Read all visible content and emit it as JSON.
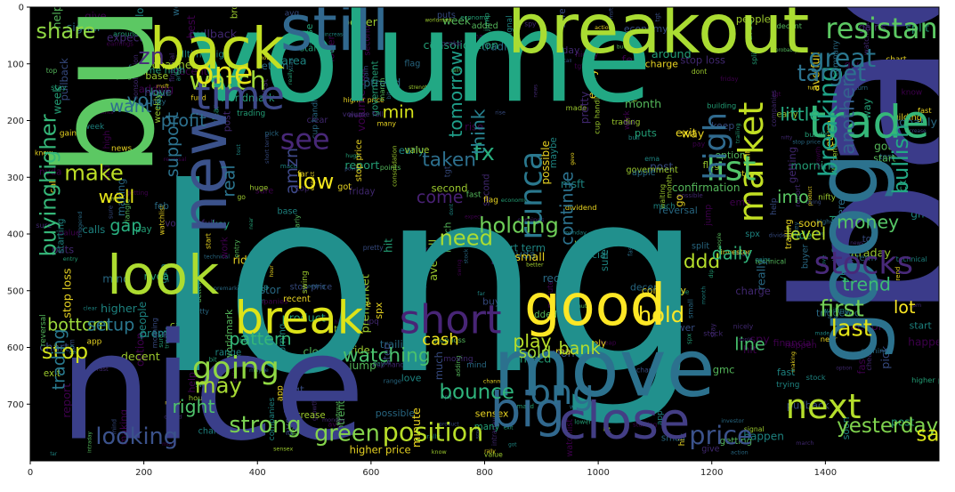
{
  "figure": {
    "background": "#ffffff",
    "plot_background": "#000000",
    "image_width_units": 1600,
    "image_height_units": 800
  },
  "axes": {
    "x_ticks": [
      0,
      200,
      400,
      600,
      800,
      1000,
      1200,
      1400
    ],
    "y_ticks": [
      0,
      100,
      200,
      300,
      400,
      500,
      600,
      700
    ],
    "xlim": [
      0,
      1600
    ],
    "ylim_inverted": [
      800,
      0
    ]
  },
  "palette": [
    "#440154",
    "#472c7a",
    "#3b518b",
    "#2c718e",
    "#21908d",
    "#27ad81",
    "#5cc863",
    "#aadc32",
    "#fde725"
  ],
  "wordcloud": {
    "major_words": [
      {
        "text": "long",
        "color": "#21908d"
      },
      {
        "text": "bac",
        "color": "#3b3b8a"
      },
      {
        "text": "volume",
        "color": "#22a884"
      },
      {
        "text": "nice",
        "color": "#3a3f8a"
      },
      {
        "text": "buy",
        "color": "#5cc863"
      },
      {
        "text": "breakout",
        "color": "#aadc32"
      },
      {
        "text": "still",
        "color": "#31688e"
      },
      {
        "text": "back",
        "color": "#c2df23"
      },
      {
        "text": "move",
        "color": "#2c718e"
      },
      {
        "text": "goog",
        "color": "#2c728e"
      },
      {
        "text": "close",
        "color": "#433e85"
      },
      {
        "text": "new",
        "color": "#3b528b"
      },
      {
        "text": "good",
        "color": "#fde725"
      },
      {
        "text": "look",
        "color": "#addc30"
      },
      {
        "text": "break",
        "color": "#dde318"
      },
      {
        "text": "short",
        "color": "#482576"
      },
      {
        "text": "big",
        "color": "#31688e"
      },
      {
        "text": "trade",
        "color": "#35b779"
      },
      {
        "text": "market",
        "color": "#c2df23"
      },
      {
        "text": "next",
        "color": "#b5de2b"
      },
      {
        "text": "stocks",
        "color": "#482979"
      },
      {
        "text": "resistance",
        "color": "#5cc863"
      },
      {
        "text": "watch",
        "color": "#a0da39"
      },
      {
        "text": "time",
        "color": "#3e4989"
      },
      {
        "text": "one",
        "color": "#e5e419"
      },
      {
        "text": "list",
        "color": "#52c569"
      },
      {
        "text": "going",
        "color": "#90d743"
      },
      {
        "text": "strong",
        "color": "#7ad151"
      },
      {
        "text": "position",
        "color": "#b8de29"
      },
      {
        "text": "green",
        "color": "#84d44b"
      },
      {
        "text": "price",
        "color": "#3b528b"
      },
      {
        "text": "high",
        "color": "#306a8e"
      },
      {
        "text": "see",
        "color": "#482878"
      },
      {
        "text": "great",
        "color": "#2a768e"
      },
      {
        "text": "looking",
        "color": "#3b528b"
      },
      {
        "text": "share",
        "color": "#8fd744"
      },
      {
        "text": "buyinghigher",
        "color": "#35b779"
      },
      {
        "text": "breaking",
        "color": "#1fa287"
      },
      {
        "text": "target",
        "color": "#2c728e"
      },
      {
        "text": "runca",
        "color": "#2a788e"
      },
      {
        "text": "make",
        "color": "#bddf26"
      },
      {
        "text": "ong",
        "color": "#2e6f8e"
      },
      {
        "text": "stop",
        "color": "#d0e11c"
      },
      {
        "text": "may",
        "color": "#a8db34"
      },
      {
        "text": "first",
        "color": "#73d056"
      },
      {
        "text": "last",
        "color": "#e2e418"
      },
      {
        "text": "hold",
        "color": "#fde725"
      },
      {
        "text": "low",
        "color": "#f1e51d"
      },
      {
        "text": "need",
        "color": "#aadc32"
      },
      {
        "text": "holding",
        "color": "#6ece58"
      },
      {
        "text": "bounce",
        "color": "#2fb47c"
      },
      {
        "text": "yesterday",
        "color": "#7fd34e"
      },
      {
        "text": "say",
        "color": "#d8e219"
      },
      {
        "text": "ddd",
        "color": "#b5de2b"
      },
      {
        "text": "bullish",
        "color": "#22a884"
      },
      {
        "text": "tomorrow",
        "color": "#1f9e89"
      },
      {
        "text": "taken",
        "color": "#2d708e"
      },
      {
        "text": "fx",
        "color": "#29af7f"
      },
      {
        "text": "watching",
        "color": "#4ac16d"
      },
      {
        "text": "play",
        "color": "#b8de29"
      },
      {
        "text": "right",
        "color": "#4ec36b"
      },
      {
        "text": "well",
        "color": "#e5e419"
      },
      {
        "text": "little",
        "color": "#25ac82"
      },
      {
        "text": "profit",
        "color": "#2d708e"
      },
      {
        "text": "trend",
        "color": "#3dbc74"
      },
      {
        "text": "support",
        "color": "#2c728e"
      },
      {
        "text": "think",
        "color": "#27808e"
      },
      {
        "text": "min",
        "color": "#d5e21a"
      },
      {
        "text": "real",
        "color": "#2b748e"
      },
      {
        "text": "amzn",
        "color": "#3e4989"
      },
      {
        "text": "bottom",
        "color": "#9bd93c"
      },
      {
        "text": "cash",
        "color": "#f1e51d"
      },
      {
        "text": "sold",
        "color": "#a0da39"
      },
      {
        "text": "bank",
        "color": "#b2dd2d"
      },
      {
        "text": "daily",
        "color": "#31b57b"
      },
      {
        "text": "imo",
        "color": "#5ac864"
      },
      {
        "text": "lot",
        "color": "#fbe723"
      },
      {
        "text": "continue",
        "color": "#2c728e"
      },
      {
        "text": "level",
        "color": "#b8de29"
      },
      {
        "text": "line",
        "color": "#48c16e"
      },
      {
        "text": "pattern",
        "color": "#35b779"
      },
      {
        "text": "gap",
        "color": "#29af7f"
      },
      {
        "text": "zn",
        "color": "#472d7b"
      },
      {
        "text": "another",
        "color": "#34618d"
      },
      {
        "text": "vol",
        "color": "#2c738e"
      },
      {
        "text": "want",
        "color": "#2e6e8e"
      },
      {
        "text": "money",
        "color": "#56c667"
      },
      {
        "text": "come",
        "color": "#482173"
      },
      {
        "text": "trading",
        "color": "#29798e"
      },
      {
        "text": "setup",
        "color": "#2a778e"
      }
    ],
    "small_words": [
      "stock",
      "trading",
      "morning",
      "soon",
      "pullback",
      "rally",
      "bull",
      "entry",
      "points",
      "higher",
      "month",
      "around",
      "test",
      "help",
      "dont",
      "post",
      "spy",
      "spx",
      "nvda",
      "gmc",
      "option",
      "call",
      "calls",
      "puts",
      "chart",
      "week",
      "weekly",
      "triangle",
      "stop loss",
      "cup handle",
      "earnings",
      "dividend",
      "economy",
      "sensex",
      "nifty",
      "intraday",
      "consolidation",
      "trailing",
      "made",
      "jpm",
      "start",
      "jump",
      "best",
      "range",
      "love",
      "sure",
      "app",
      "getting",
      "people",
      "macd",
      "investor",
      "cheap",
      "apple",
      "huge",
      "nicely",
      "small",
      "better",
      "split",
      "trying",
      "dip",
      "growth",
      "report",
      "signal",
      "clear",
      "minute",
      "expect",
      "news",
      "fund",
      "happen",
      "adding",
      "feb",
      "tgt",
      "week",
      "watchlist",
      "reversal",
      "early",
      "waiting",
      "company",
      "hpq",
      "worldmark",
      "making",
      "avg",
      "value",
      "ema",
      "pick",
      "possible",
      "pay",
      "maybe",
      "second",
      "uptrend",
      "keep",
      "government",
      "msft",
      "gevo",
      "tgt",
      "added",
      "got",
      "top",
      "monday",
      "pretty",
      "many",
      "know",
      "building",
      "technical",
      "financial",
      "action",
      "gain",
      "area",
      "lower",
      "alltime high",
      "mind",
      "far",
      "near",
      "base",
      "broke",
      "confirmation",
      "moving",
      "increase",
      "step",
      "channel",
      "march",
      "recent",
      "premarket",
      "short term",
      "stay",
      "hour",
      "friday",
      "much",
      "flag",
      "return",
      "hit",
      "way",
      "starting",
      "work",
      "really",
      "key",
      "ride",
      "swing",
      "decent",
      "buyer",
      "fast",
      "gains",
      "closed",
      "ave full",
      "stop price",
      "go",
      "fast",
      "strength",
      "companies",
      "exit",
      "give",
      "triggered",
      "rise",
      "higher price",
      "probably",
      "volume full",
      "bit",
      "sure",
      "charge",
      "product"
    ]
  }
}
